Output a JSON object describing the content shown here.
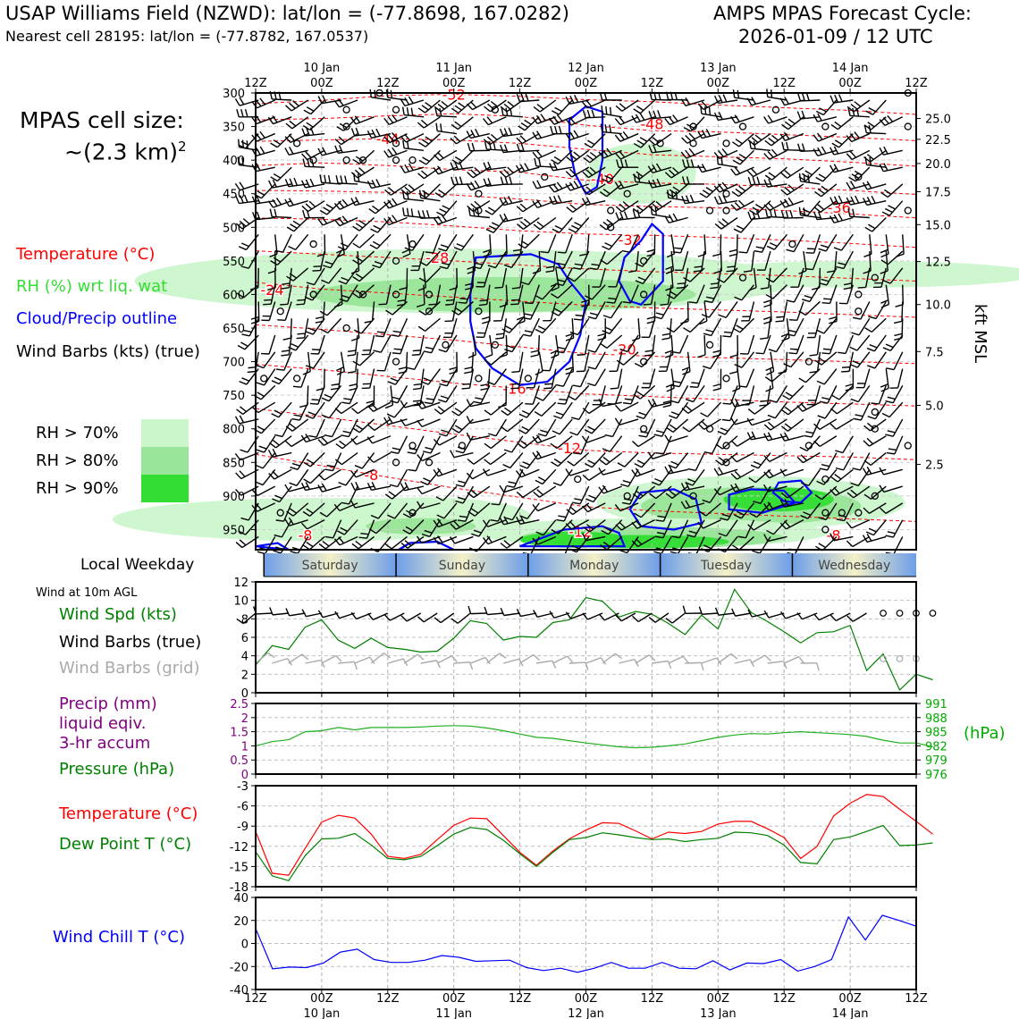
{
  "header": {
    "station": "USAP Williams Field (NZWD): lat/lon = (-77.8698, 167.0282)",
    "nearest": "Nearest cell 28195: lat/lon = (-77.8782, 167.0537)",
    "cycle_line1": "AMPS MPAS Forecast Cycle:",
    "cycle_line2": "2026-01-09 / 12 UTC"
  },
  "cellsize": {
    "line1": "MPAS cell size:",
    "line2": "~(2.3 km)",
    "exp": "2"
  },
  "legend": {
    "temperature": "Temperature (°C)",
    "rh": "RH (%) wrt liq. wat",
    "cloud": "Cloud/Precip outline",
    "barbs": "Wind Barbs (kts) (true)",
    "rh70": "RH > 70%",
    "rh80": "RH > 80%",
    "rh90": "RH > 90%",
    "rh70_color": "#ccf7cc",
    "rh80_color": "#99e599",
    "rh90_color": "#33dd33"
  },
  "weekday": {
    "label": "Local Weekday",
    "days": [
      "Saturday",
      "Sunday",
      "Monday",
      "Tuesday",
      "Wednesday"
    ]
  },
  "wind_legend": {
    "title": "Wind at 10m AGL",
    "spd": "Wind Spd (kts)",
    "true": "Wind Barbs (true)",
    "grid": "Wind Barbs (grid)"
  },
  "precip_legend": {
    "l1": "Precip (mm)",
    "l2": "liquid eqiv.",
    "l3": "3-hr accum",
    "pressure": "Pressure (hPa)",
    "hpa": "(hPa)"
  },
  "temp_legend": {
    "temp": "Temperature (°C)",
    "dew": "Dew Point T (°C)"
  },
  "chill_legend": {
    "label": "Wind Chill T (°C)"
  },
  "time_axis": {
    "hour_labels": [
      "12Z",
      "00Z",
      "12Z",
      "00Z",
      "12Z",
      "00Z",
      "12Z",
      "00Z",
      "12Z",
      "00Z",
      "12Z"
    ],
    "date_labels": [
      "10 Jan",
      "11 Jan",
      "12 Jan",
      "13 Jan",
      "14 Jan"
    ]
  },
  "chart_data": [
    {
      "type": "heatmap",
      "name": "time-height cross section",
      "x_hours": [
        0,
        120
      ],
      "pressure_ticks": [
        300,
        350,
        400,
        450,
        500,
        550,
        600,
        650,
        700,
        750,
        800,
        850,
        900,
        950
      ],
      "kft_ticks": [
        25.0,
        22.5,
        20.0,
        17.5,
        15.0,
        12.5,
        10.0,
        7.5,
        5.0,
        2.5
      ],
      "kft_tick_labels": [
        "25.0",
        "22.5",
        "20.0",
        "17.5",
        "15.0",
        "12.5",
        "10.0",
        "7.5",
        "5.0",
        "2.5"
      ],
      "kft_tick_pressures": [
        338,
        369,
        405,
        447,
        496,
        551,
        615,
        685,
        765,
        853
      ],
      "right_axis_label": "kft MSL",
      "isotherms": [
        {
          "label": "-52",
          "p": [
            316,
            311,
            304,
            302,
            305,
            310,
            313,
            318,
            322,
            326,
            332
          ]
        },
        {
          "label": "-48",
          "p": [
            340,
            338,
            334,
            331,
            335,
            348,
            356,
            358,
            362,
            366,
            371
          ]
        },
        {
          "label": "-44",
          "p": [
            372,
            370,
            368,
            370,
            375,
            384,
            392,
            395,
            398,
            403,
            409
          ]
        },
        {
          "label": "-40",
          "p": [
            408,
            404,
            408,
            414,
            418,
            430,
            434,
            436,
            440,
            445,
            451
          ]
        },
        {
          "label": "-36",
          "p": [
            445,
            446,
            448,
            452,
            458,
            466,
            469,
            471,
            475,
            480,
            486
          ]
        },
        {
          "label": "-32",
          "p": [
            486,
            488,
            492,
            498,
            505,
            510,
            512,
            515,
            519,
            524,
            530
          ]
        },
        {
          "label": "-28",
          "p": [
            535,
            540,
            545,
            550,
            556,
            562,
            566,
            569,
            572,
            576,
            580
          ]
        },
        {
          "label": "-24",
          "p": [
            582,
            592,
            598,
            604,
            610,
            616,
            620,
            623,
            626,
            630,
            634
          ]
        },
        {
          "label": "-20",
          "p": [
            645,
            652,
            660,
            668,
            678,
            688,
            692,
            694,
            697,
            700,
            703
          ]
        },
        {
          "label": "-16",
          "p": [
            704,
            712,
            722,
            732,
            740,
            748,
            752,
            756,
            760,
            763,
            766
          ]
        },
        {
          "label": "-12",
          "p": [
            770,
            782,
            795,
            808,
            820,
            832,
            836,
            838,
            840,
            842,
            846
          ]
        },
        {
          "label": "-8",
          "p": [
            838,
            855,
            872,
            888,
            902,
            916,
            922,
            926,
            930,
            934,
            938
          ]
        }
      ],
      "isotherm_label_positions": [
        {
          "label": "-52",
          "hour": 36,
          "p": 304
        },
        {
          "label": "-48",
          "hour": 72,
          "p": 348
        },
        {
          "label": "-44",
          "hour": 24,
          "p": 370
        },
        {
          "label": "-40",
          "hour": 63,
          "p": 430
        },
        {
          "label": "-36",
          "hour": 106,
          "p": 472
        },
        {
          "label": "-32",
          "hour": 68,
          "p": 520
        },
        {
          "label": "-28",
          "hour": 33,
          "p": 547
        },
        {
          "label": "-24",
          "hour": 3,
          "p": 595
        },
        {
          "label": "-20",
          "hour": 67,
          "p": 683
        },
        {
          "label": "-16",
          "hour": 47,
          "p": 742
        },
        {
          "label": "-12",
          "hour": 57,
          "p": 830
        },
        {
          "label": "-8",
          "hour": 21,
          "p": 870
        },
        {
          "label": "-8",
          "hour": 9,
          "p": 960
        },
        {
          "label": "-12",
          "hour": 59,
          "p": 955
        },
        {
          "label": "-8",
          "hour": 105,
          "p": 960
        }
      ]
    },
    {
      "type": "line",
      "name": "wind speed 10m",
      "x_hours_step": 3,
      "ylim": [
        0,
        12
      ],
      "yticks": [
        0,
        2,
        4,
        6,
        8,
        10,
        12
      ],
      "color": "#008000",
      "values": [
        3.0,
        5.1,
        4.7,
        7.1,
        7.9,
        5.7,
        4.8,
        5.9,
        4.9,
        4.7,
        4.4,
        4.5,
        5.9,
        7.8,
        7.5,
        5.7,
        6.1,
        6.0,
        7.6,
        7.9,
        10.3,
        9.9,
        8.2,
        8.8,
        8.5,
        7.5,
        6.3,
        8.4,
        6.9,
        11.2,
        8.7,
        7.7,
        6.6,
        5.4,
        6.5,
        6.6,
        7.3,
        2.4,
        4.2,
        0.3,
        2.0,
        1.4
      ]
    },
    {
      "type": "line",
      "name": "pressure",
      "x_hours_step": 3,
      "ylim_left": [
        0,
        2.5
      ],
      "yticks_left": [
        0,
        0.5,
        1.0,
        1.5,
        2.0,
        2.5
      ],
      "ylim_right": [
        976,
        991
      ],
      "yticks_right": [
        976,
        979,
        982,
        985,
        988,
        991
      ],
      "color": "#20b020",
      "values": [
        982.0,
        982.9,
        983.3,
        985.0,
        985.2,
        985.9,
        985.4,
        985.9,
        985.9,
        985.9,
        986.0,
        986.2,
        986.3,
        986.2,
        985.8,
        985.2,
        984.5,
        983.8,
        983.6,
        983.1,
        982.6,
        982.2,
        981.8,
        981.6,
        981.7,
        982.0,
        982.4,
        983.1,
        983.8,
        984.3,
        984.6,
        984.5,
        984.8,
        985.0,
        984.8,
        984.6,
        984.4,
        984.0,
        983.2,
        982.6,
        982.6,
        981.8
      ]
    },
    {
      "type": "line",
      "name": "temperature and dew point",
      "x_hours_step": 3,
      "ylim": [
        -18,
        -3
      ],
      "yticks": [
        -18,
        -15,
        -12,
        -9,
        -6,
        -3
      ],
      "series": [
        {
          "name": "Temperature",
          "color": "#ff0000",
          "values": [
            -9.8,
            -16.0,
            -16.3,
            -12.3,
            -8.4,
            -7.4,
            -7.8,
            -10.2,
            -13.5,
            -13.8,
            -13.2,
            -11.0,
            -8.9,
            -7.8,
            -7.9,
            -10.4,
            -12.9,
            -14.8,
            -12.7,
            -10.9,
            -9.6,
            -8.5,
            -8.6,
            -9.7,
            -10.9,
            -9.9,
            -10.1,
            -9.8,
            -8.7,
            -8.3,
            -8.3,
            -9.4,
            -10.7,
            -13.8,
            -12.0,
            -7.5,
            -5.6,
            -4.3,
            -4.6,
            -6.5,
            -8.3,
            -10.2
          ]
        },
        {
          "name": "Dew Point T",
          "color": "#008000",
          "values": [
            -12.8,
            -16.4,
            -17.1,
            -13.4,
            -10.9,
            -10.8,
            -10.1,
            -11.8,
            -13.8,
            -14.0,
            -13.5,
            -11.9,
            -10.2,
            -9.2,
            -9.5,
            -11.1,
            -13.1,
            -15.0,
            -12.9,
            -11.0,
            -10.7,
            -10.0,
            -10.3,
            -10.7,
            -11.0,
            -10.9,
            -11.3,
            -11.0,
            -10.8,
            -9.9,
            -10.0,
            -10.4,
            -11.8,
            -14.4,
            -14.6,
            -11.0,
            -10.6,
            -9.8,
            -8.9,
            -11.9,
            -11.8,
            -11.5
          ]
        }
      ]
    },
    {
      "type": "line",
      "name": "wind chill",
      "x_hours_step": 3,
      "ylim": [
        -40,
        40
      ],
      "yticks": [
        -40,
        -20,
        0,
        20,
        40
      ],
      "color": "#0000ff",
      "values": [
        13,
        -22,
        -20.5,
        -21,
        -17,
        -7.5,
        -5,
        -14,
        -16.5,
        -16.5,
        -14.5,
        -10.5,
        -12,
        -15.5,
        -15,
        -14.5,
        -21,
        -23.5,
        -21.5,
        -25,
        -21.5,
        -16.5,
        -21.5,
        -21.5,
        -16.5,
        -21.5,
        -22,
        -15,
        -23,
        -17,
        -17.5,
        -14,
        -24,
        -20,
        -14,
        23,
        3,
        24.5,
        20,
        15
      ]
    }
  ]
}
